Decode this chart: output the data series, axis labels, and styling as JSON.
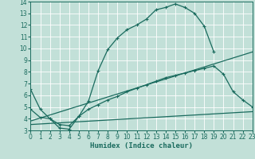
{
  "xlabel": "Humidex (Indice chaleur)",
  "xlim": [
    0,
    23
  ],
  "ylim": [
    3,
    14
  ],
  "xticks": [
    0,
    1,
    2,
    3,
    4,
    5,
    6,
    7,
    8,
    9,
    10,
    11,
    12,
    13,
    14,
    15,
    16,
    17,
    18,
    19,
    20,
    21,
    22,
    23
  ],
  "yticks": [
    3,
    4,
    5,
    6,
    7,
    8,
    9,
    10,
    11,
    12,
    13,
    14
  ],
  "bg_color": "#c2e0d8",
  "grid_color": "#ffffff",
  "line_color": "#1a6b5e",
  "curve1_x": [
    0,
    1,
    2,
    3,
    4,
    5,
    6,
    7,
    8,
    9,
    10,
    11,
    12,
    13,
    14,
    15,
    16,
    17,
    18,
    19
  ],
  "curve1_y": [
    6.5,
    4.8,
    4.0,
    3.2,
    3.1,
    4.2,
    5.5,
    8.1,
    9.9,
    10.9,
    11.6,
    12.0,
    12.5,
    13.3,
    13.5,
    13.8,
    13.5,
    13.0,
    11.9,
    9.7
  ],
  "curve2_x": [
    0,
    1,
    2,
    3,
    4,
    5,
    6,
    7,
    8,
    9,
    10,
    11,
    12,
    13,
    14,
    15,
    16,
    17,
    18,
    19,
    20,
    21,
    22,
    23
  ],
  "curve2_y": [
    4.8,
    4.1,
    4.0,
    3.5,
    3.4,
    4.2,
    4.8,
    5.2,
    5.6,
    5.9,
    6.3,
    6.6,
    6.9,
    7.2,
    7.5,
    7.7,
    7.9,
    8.1,
    8.3,
    8.5,
    7.8,
    6.3,
    5.6,
    5.0
  ],
  "line3_x": [
    0,
    23
  ],
  "line3_y": [
    3.8,
    9.7
  ],
  "line4_x": [
    0,
    23
  ],
  "line4_y": [
    3.5,
    4.6
  ]
}
